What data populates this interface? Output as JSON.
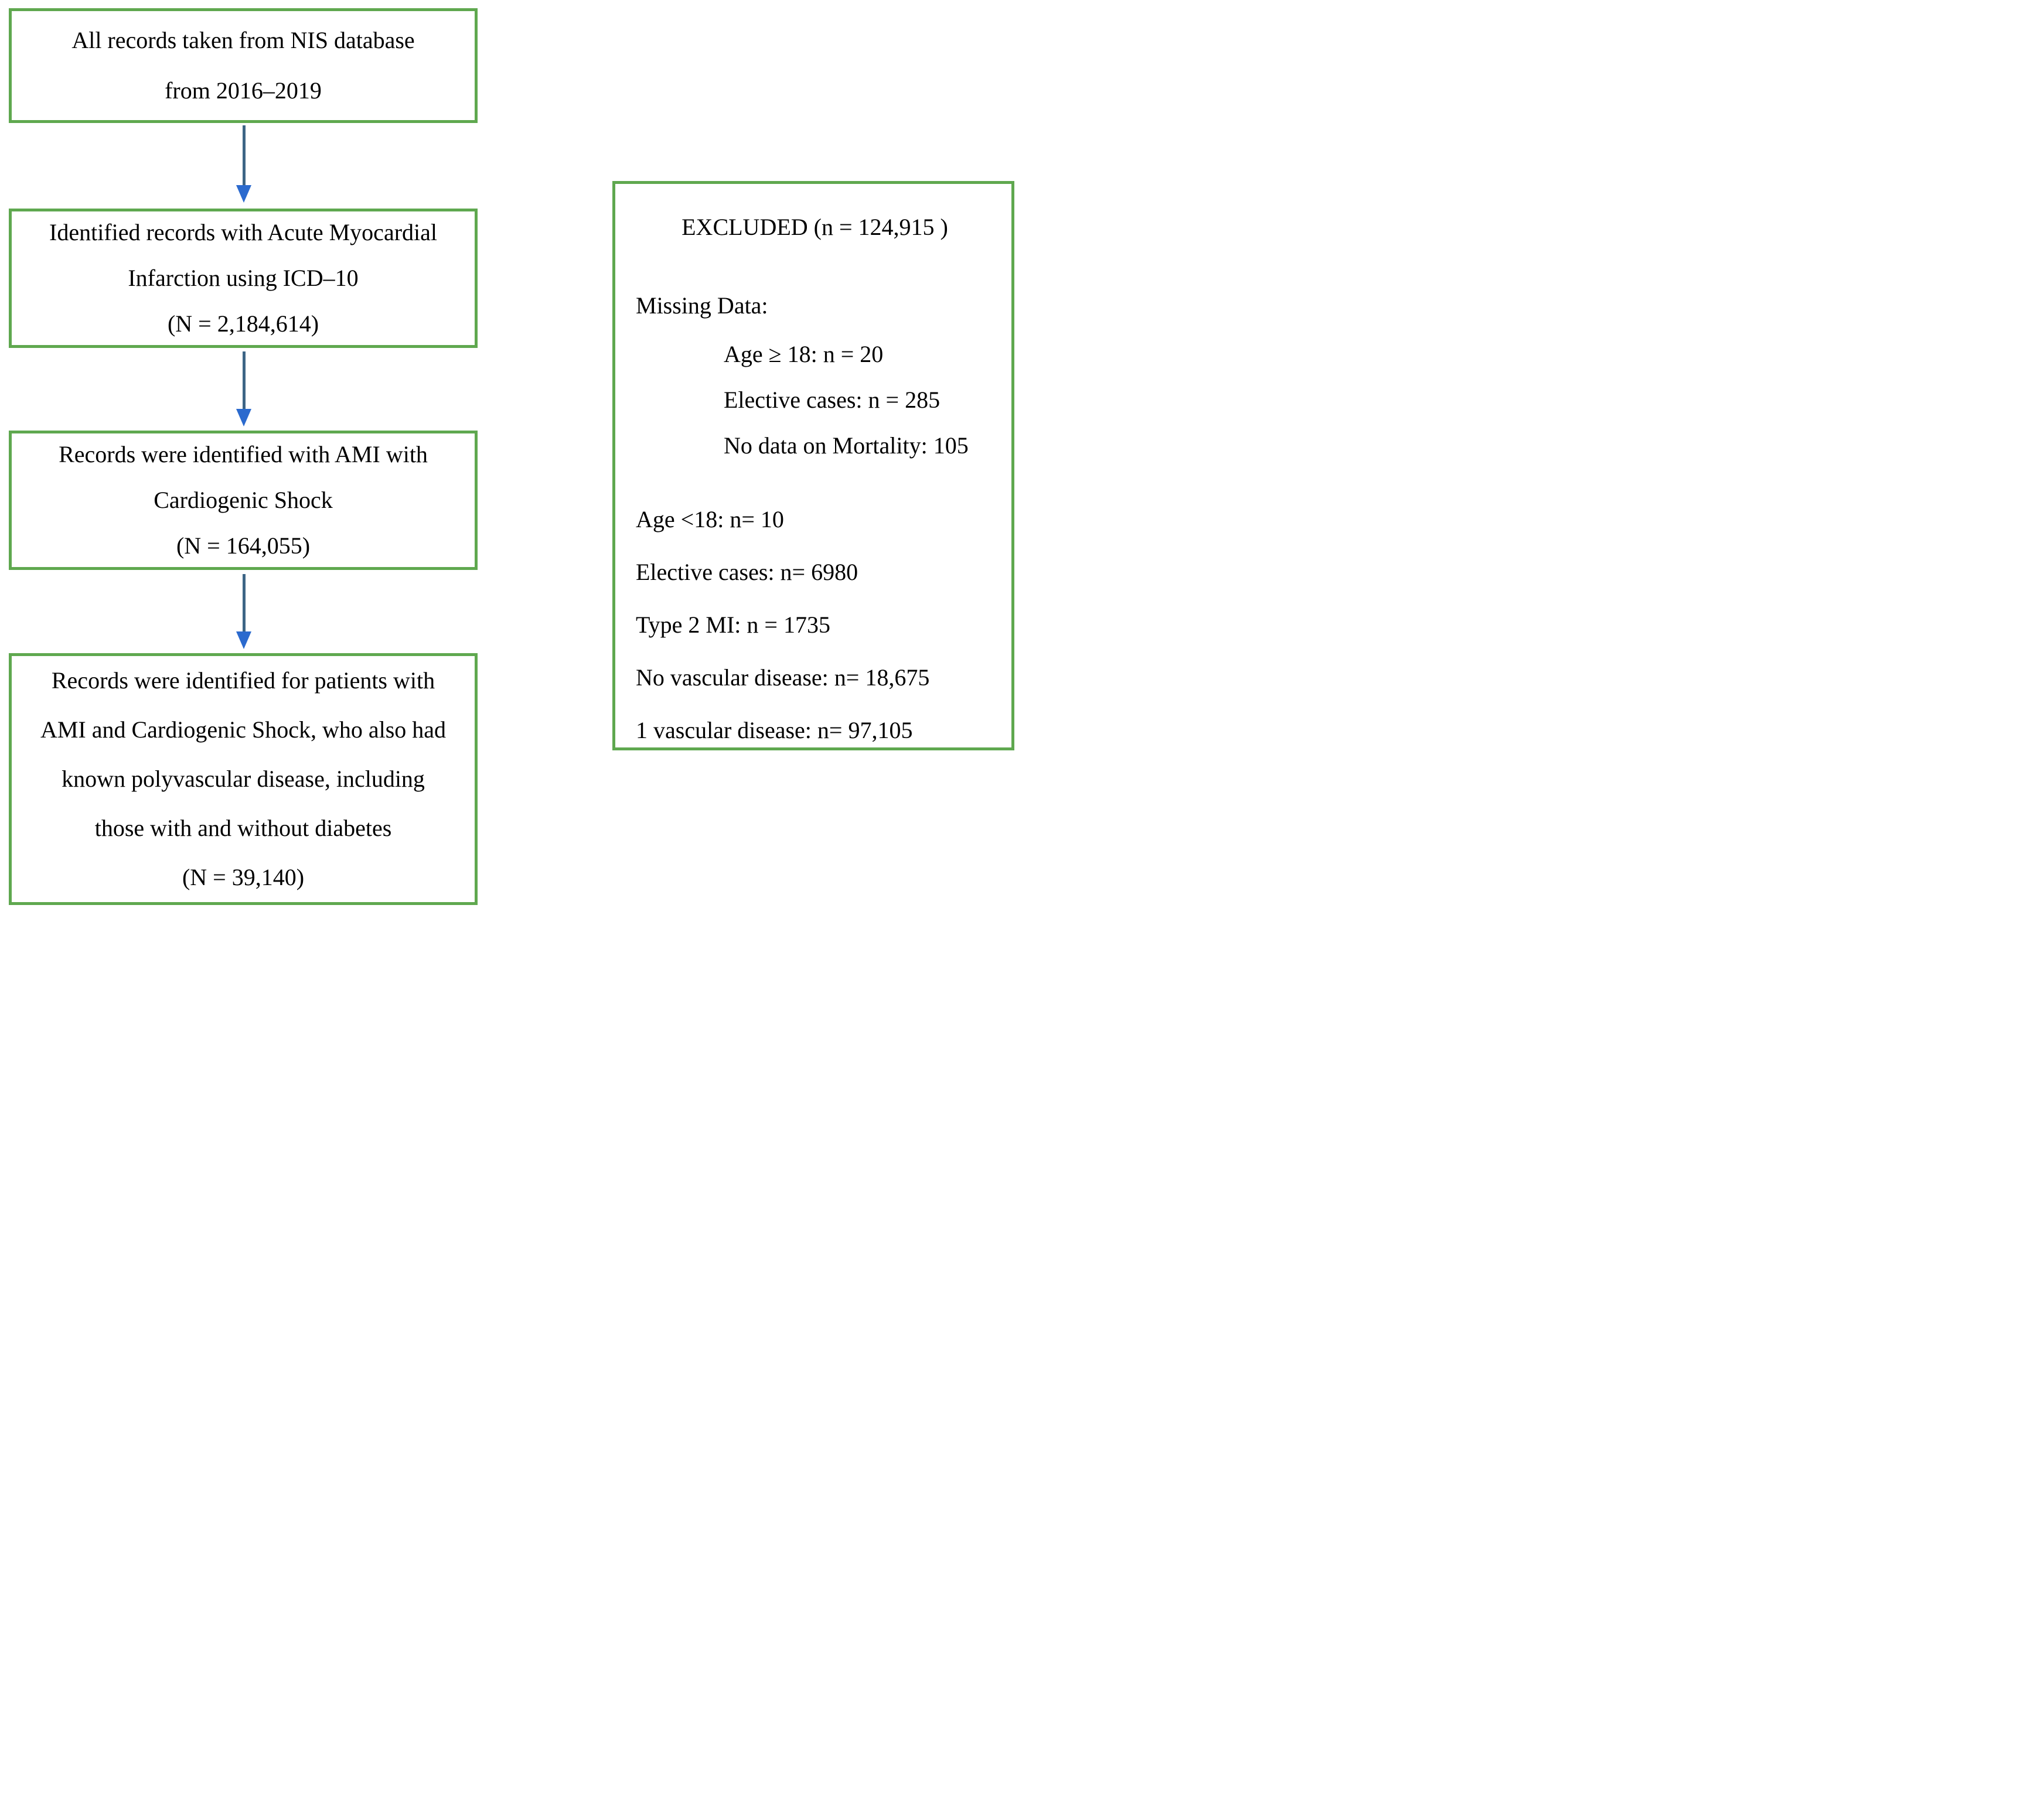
{
  "flowchart": {
    "main_boxes": [
      {
        "name": "nis-database",
        "lines": [
          "All records taken from NIS database",
          "from 2016–2019"
        ]
      },
      {
        "name": "ami-icd10",
        "lines": [
          "Identified records with Acute Myocardial",
          "Infarction using ICD–10",
          "(N = 2,184,614)"
        ]
      },
      {
        "name": "ami-cardiogenic-shock",
        "lines": [
          "Records were identified with AMI with",
          "Cardiogenic Shock",
          "(N = 164,055)"
        ]
      },
      {
        "name": "polyvascular-disease",
        "lines": [
          "Records were identified for patients with",
          "AMI and Cardiogenic Shock, who also had",
          "known polyvascular disease, including",
          "those with and without diabetes",
          "(N = 39,140)"
        ]
      }
    ],
    "excluded_box": {
      "title": "EXCLUDED (n = 124,915 )",
      "missing_data_label": "Missing Data:",
      "missing_data_items": [
        "Age ≥ 18: n = 20",
        "Elective cases: n = 285",
        "No data on Mortality: 105"
      ],
      "other_items": [
        "Age <18: n= 10",
        "Elective cases: n= 6980",
        "Type 2 MI: n = 1735",
        "No vascular disease: n= 18,675",
        "1 vascular disease: n= 97,105"
      ]
    },
    "colors": {
      "box_border": "#5fa84f",
      "arrow_stem": "#3d6586",
      "arrow_head": "#2b6ace",
      "text": "#000000",
      "background": "#ffffff"
    }
  }
}
